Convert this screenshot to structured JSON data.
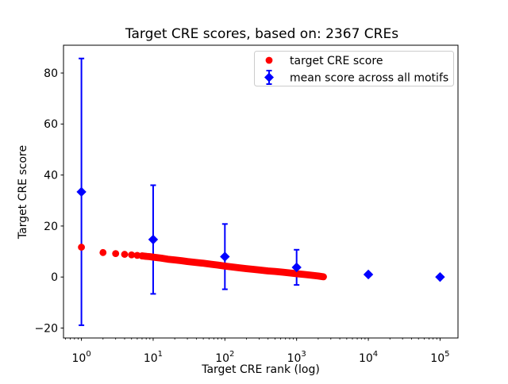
{
  "figure": {
    "title": "Target CRE scores, based on: 2367 CREs",
    "xlabel": "Target CRE rank (log)",
    "ylabel": "Target CRE score"
  },
  "chart_data": {
    "type": "scatter",
    "title": "Target CRE scores, based on: 2367 CREs",
    "xlabel": "Target CRE rank (log)",
    "ylabel": "Target CRE score",
    "x_scale": "log",
    "xlim": [
      0.5623,
      177828
    ],
    "ylim": [
      -23.9,
      90.9
    ],
    "x_tick_base": "10",
    "x_tick_exponents": [
      0,
      1,
      2,
      3,
      4,
      5
    ],
    "y_ticks": [
      -20,
      0,
      20,
      40,
      60,
      80
    ],
    "grid": false,
    "legend_position": "upper right",
    "n_cres": 2367,
    "series": [
      {
        "name": "target CRE score",
        "color": "#ff0000",
        "marker": "circle",
        "points": [
          [
            1,
            11.7
          ],
          [
            2,
            9.6
          ],
          [
            3,
            9.2
          ],
          [
            4,
            8.9
          ],
          [
            5,
            8.7
          ],
          [
            6,
            8.5
          ],
          [
            7,
            8.3
          ],
          [
            8,
            8.1
          ],
          [
            9,
            8.0
          ],
          [
            10,
            7.8
          ],
          [
            13,
            7.4
          ],
          [
            16,
            7.0
          ],
          [
            20,
            6.7
          ],
          [
            25,
            6.4
          ],
          [
            30,
            6.1
          ],
          [
            40,
            5.7
          ],
          [
            50,
            5.4
          ],
          [
            65,
            5.0
          ],
          [
            80,
            4.7
          ],
          [
            100,
            4.3
          ],
          [
            130,
            3.9
          ],
          [
            160,
            3.6
          ],
          [
            200,
            3.3
          ],
          [
            250,
            3.0
          ],
          [
            300,
            2.8
          ],
          [
            400,
            2.4
          ],
          [
            500,
            2.2
          ],
          [
            650,
            1.9
          ],
          [
            800,
            1.6
          ],
          [
            1000,
            1.3
          ],
          [
            1300,
            1.0
          ],
          [
            1600,
            0.7
          ],
          [
            2000,
            0.4
          ],
          [
            2367,
            0.1
          ]
        ]
      },
      {
        "name": "mean score across all motifs",
        "color": "#0000ff",
        "marker": "diamond",
        "error_bars": true,
        "points": [
          [
            1,
            33.4
          ],
          [
            10,
            14.7
          ],
          [
            100,
            8.0
          ],
          [
            1000,
            3.8
          ],
          [
            10000,
            1.0
          ],
          [
            100000,
            0.0
          ]
        ],
        "errors": [
          52.3,
          21.3,
          12.8,
          6.9,
          0.5,
          0.3
        ]
      }
    ]
  }
}
